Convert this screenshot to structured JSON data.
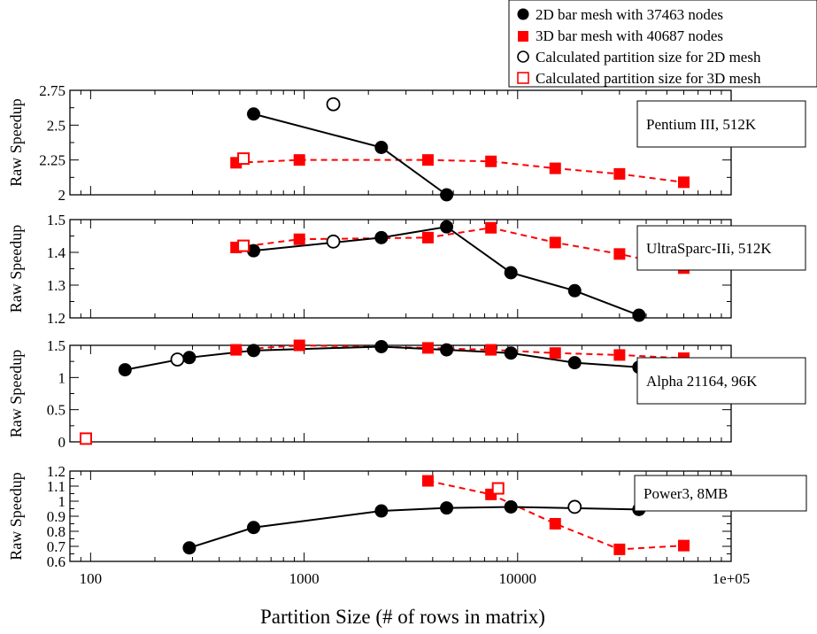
{
  "figure": {
    "xlabel": "Partition Size (# of rows in matrix)",
    "x_tick_labels": [
      "100",
      "1000",
      "10000",
      "1e+05"
    ],
    "legend": [
      "2D bar mesh with 37463 nodes",
      "3D bar mesh with 40687 nodes",
      "Calculated partition size for 2D mesh",
      "Calculated partition size for 3D mesh"
    ]
  },
  "colors": {
    "series_2d": "#000000",
    "series_3d": "#ff0000"
  },
  "chart_data": [
    {
      "type": "line",
      "title": "Pentium III, 512K",
      "xlabel": "Partition Size (# of rows in matrix)",
      "ylabel": "Raw Speedup",
      "xscale": "log",
      "xlim": [
        80,
        100000
      ],
      "ylim": [
        2,
        2.75
      ],
      "yticks": [
        2,
        2.25,
        2.5,
        2.75
      ],
      "ytick_labels": [
        "2",
        "2.25",
        "2.5",
        "2.75"
      ],
      "series": [
        {
          "name": "2D bar mesh with 37463 nodes",
          "style": "solid-circle",
          "x": [
            580,
            2300,
            4650
          ],
          "y": [
            2.58,
            2.34,
            2.0
          ]
        },
        {
          "name": "3D bar mesh with 40687 nodes",
          "style": "dashed-square",
          "x": [
            480,
            950,
            3800,
            7500,
            15000,
            30000,
            60000
          ],
          "y": [
            2.23,
            2.25,
            2.25,
            2.24,
            2.19,
            2.15,
            2.09
          ]
        }
      ],
      "calculated": [
        {
          "name": "Calculated partition size for 2D mesh",
          "marker": "open-circle",
          "x": 1370,
          "y": 2.65
        },
        {
          "name": "Calculated partition size for 3D mesh",
          "marker": "open-square",
          "x": 520,
          "y": 2.26
        }
      ]
    },
    {
      "type": "line",
      "title": "UltraSparc-IIi, 512K",
      "xlabel": "Partition Size (# of rows in matrix)",
      "ylabel": "Raw Speedup",
      "xscale": "log",
      "xlim": [
        80,
        100000
      ],
      "ylim": [
        1.2,
        1.5
      ],
      "yticks": [
        1.2,
        1.3,
        1.4,
        1.5
      ],
      "ytick_labels": [
        "1.2",
        "1.3",
        "1.4",
        "1.5"
      ],
      "series": [
        {
          "name": "2D bar mesh with 37463 nodes",
          "style": "solid-circle",
          "x": [
            580,
            2300,
            4650,
            9300,
            18500,
            37000
          ],
          "y": [
            1.405,
            1.445,
            1.478,
            1.338,
            1.283,
            1.208
          ]
        },
        {
          "name": "3D bar mesh with 40687 nodes",
          "style": "dashed-square",
          "x": [
            480,
            950,
            3800,
            7500,
            15000,
            30000,
            60000
          ],
          "y": [
            1.415,
            1.44,
            1.445,
            1.475,
            1.43,
            1.395,
            1.352
          ]
        }
      ],
      "calculated": [
        {
          "name": "Calculated partition size for 2D mesh",
          "marker": "open-circle",
          "x": 1370,
          "y": 1.433
        },
        {
          "name": "Calculated partition size for 3D mesh",
          "marker": "open-square",
          "x": 520,
          "y": 1.42
        }
      ]
    },
    {
      "type": "line",
      "title": "Alpha 21164, 96K",
      "xlabel": "Partition Size (# of rows in matrix)",
      "ylabel": "Raw Speedup",
      "xscale": "log",
      "xlim": [
        80,
        100000
      ],
      "ylim": [
        0,
        1.5
      ],
      "yticks": [
        0,
        0.5,
        1,
        1.5
      ],
      "ytick_labels": [
        "0",
        "0.5",
        "1",
        "1.5"
      ],
      "series": [
        {
          "name": "2D bar mesh with 37463 nodes",
          "style": "solid-circle",
          "x": [
            145,
            290,
            580,
            2300,
            4650,
            9300,
            18500,
            37000
          ],
          "y": [
            1.12,
            1.31,
            1.42,
            1.48,
            1.43,
            1.38,
            1.23,
            1.16
          ]
        },
        {
          "name": "3D bar mesh with 40687 nodes",
          "style": "dashed-square",
          "x": [
            480,
            950,
            3800,
            7500,
            15000,
            30000,
            60000
          ],
          "y": [
            1.43,
            1.5,
            1.46,
            1.43,
            1.38,
            1.35,
            1.3
          ]
        }
      ],
      "calculated": [
        {
          "name": "Calculated partition size for 2D mesh",
          "marker": "open-circle",
          "x": 255,
          "y": 1.28
        },
        {
          "name": "Calculated partition size for 3D mesh",
          "marker": "open-square",
          "x": 95,
          "y": 0.05
        }
      ]
    },
    {
      "type": "line",
      "title": "Power3, 8MB",
      "xlabel": "Partition Size (# of rows in matrix)",
      "ylabel": "Raw Speedup",
      "xscale": "log",
      "xlim": [
        80,
        100000
      ],
      "ylim": [
        0.6,
        1.2
      ],
      "yticks": [
        0.6,
        0.7,
        0.8,
        0.9,
        1,
        1.1,
        1.2
      ],
      "ytick_labels": [
        "0.6",
        "0.7",
        "0.8",
        "0.9",
        "1",
        "1.1",
        "1.2"
      ],
      "series": [
        {
          "name": "2D bar mesh with 37463 nodes",
          "style": "solid-circle",
          "x": [
            290,
            580,
            2300,
            4650,
            9300,
            37000
          ],
          "y": [
            0.69,
            0.825,
            0.935,
            0.955,
            0.962,
            0.945
          ]
        },
        {
          "name": "3D bar mesh with 40687 nodes",
          "style": "dashed-square",
          "x": [
            3800,
            7500,
            15000,
            30000,
            60000
          ],
          "y": [
            1.135,
            1.045,
            0.85,
            0.68,
            0.705
          ]
        }
      ],
      "calculated": [
        {
          "name": "Calculated partition size for 2D mesh",
          "marker": "open-circle",
          "x": 18500,
          "y": 0.962
        },
        {
          "name": "Calculated partition size for 3D mesh",
          "marker": "open-square",
          "x": 8100,
          "y": 1.085
        }
      ]
    }
  ]
}
